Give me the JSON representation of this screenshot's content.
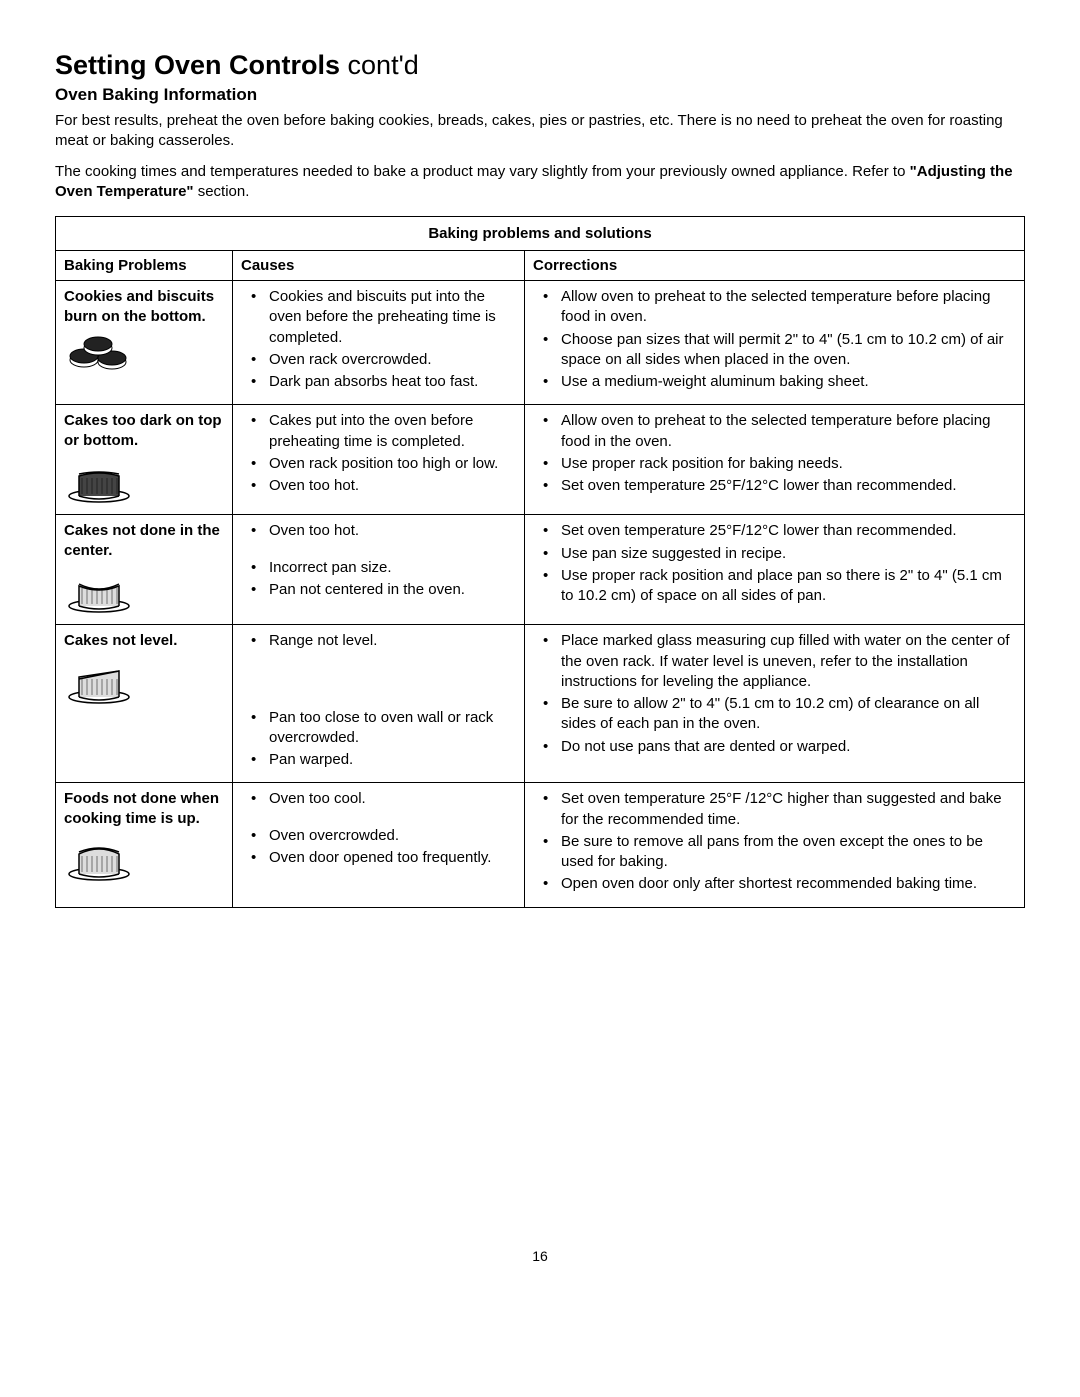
{
  "header": {
    "title_main": "Setting Oven Controls",
    "title_suffix": " cont'd",
    "subtitle": "Oven Baking Information",
    "para1": "For best results, preheat the oven before baking cookies, breads, cakes, pies or pastries, etc. There is no need to preheat the oven for roasting meat or baking casseroles.",
    "para2_a": "The cooking times and temperatures needed to bake a product may vary slightly from your previously owned appliance. Refer to ",
    "para2_bold": "\"Adjusting the Oven Temperature\"",
    "para2_b": " section."
  },
  "table": {
    "title": "Baking problems and solutions",
    "col_problem": "Baking Problems",
    "col_cause": "Causes",
    "col_correction": "Corrections",
    "rows": [
      {
        "problem": "Cookies and biscuits burn on the bottom.",
        "icon": "cookies",
        "causes": [
          "Cookies and biscuits put into the oven before the preheating time is completed.",
          "Oven rack overcrowded.",
          "Dark pan absorbs heat too fast."
        ],
        "corrections": [
          "Allow oven to preheat to the selected temperature before placing food in oven.",
          "Choose pan sizes that will permit 2\" to 4\" (5.1 cm to 10.2 cm) of air space on all sides when placed in the oven.",
          "Use a medium-weight aluminum baking sheet."
        ]
      },
      {
        "problem": "Cakes too dark on top or bottom.",
        "icon": "cake-dark",
        "causes": [
          "Cakes put into the oven before preheating time is completed.",
          "Oven rack position too high or low.",
          "Oven too hot."
        ],
        "corrections": [
          "Allow oven to preheat to the selected temperature before placing food in the oven.",
          "Use proper rack position for baking needs.",
          "Set oven temperature 25°F/12°C lower than recommended."
        ]
      },
      {
        "problem": "Cakes not done in the center.",
        "icon": "cake-sunken",
        "causes": [
          "Oven too hot.",
          "Incorrect pan size.",
          "Pan not centered in the oven."
        ],
        "corrections": [
          "Set oven temperature 25°F/12°C lower than recommended.",
          "Use pan size suggested in recipe.",
          "Use proper rack position and place pan so there is 2\" to 4\" (5.1 cm to 10.2 cm) of space on all sides of pan."
        ]
      },
      {
        "problem": "Cakes not level.",
        "icon": "cake-tilted",
        "causes": [
          "Range not level.",
          "Pan too close to oven wall or rack overcrowded.",
          "Pan warped."
        ],
        "corrections": [
          "Place marked glass measuring cup filled with water on the center of the oven rack. If water level is uneven, refer to the installation instructions for leveling the appliance.",
          "Be sure to allow 2\" to 4\" (5.1 cm to 10.2 cm) of clearance on all sides of each pan in the oven.",
          "Do not use pans that are dented or warped."
        ]
      },
      {
        "problem": "Foods not done when cooking time is up.",
        "icon": "cake-raw",
        "causes": [
          "Oven too cool.",
          "Oven overcrowded.",
          "Oven door opened too frequently."
        ],
        "corrections": [
          "Set oven temperature 25°F /12°C higher than suggested and bake for the recommended time.",
          "Be sure to remove all pans from the oven except the ones to be used for baking.",
          "Open oven door only after shortest recommended baking time."
        ]
      }
    ]
  },
  "page_number": "16"
}
